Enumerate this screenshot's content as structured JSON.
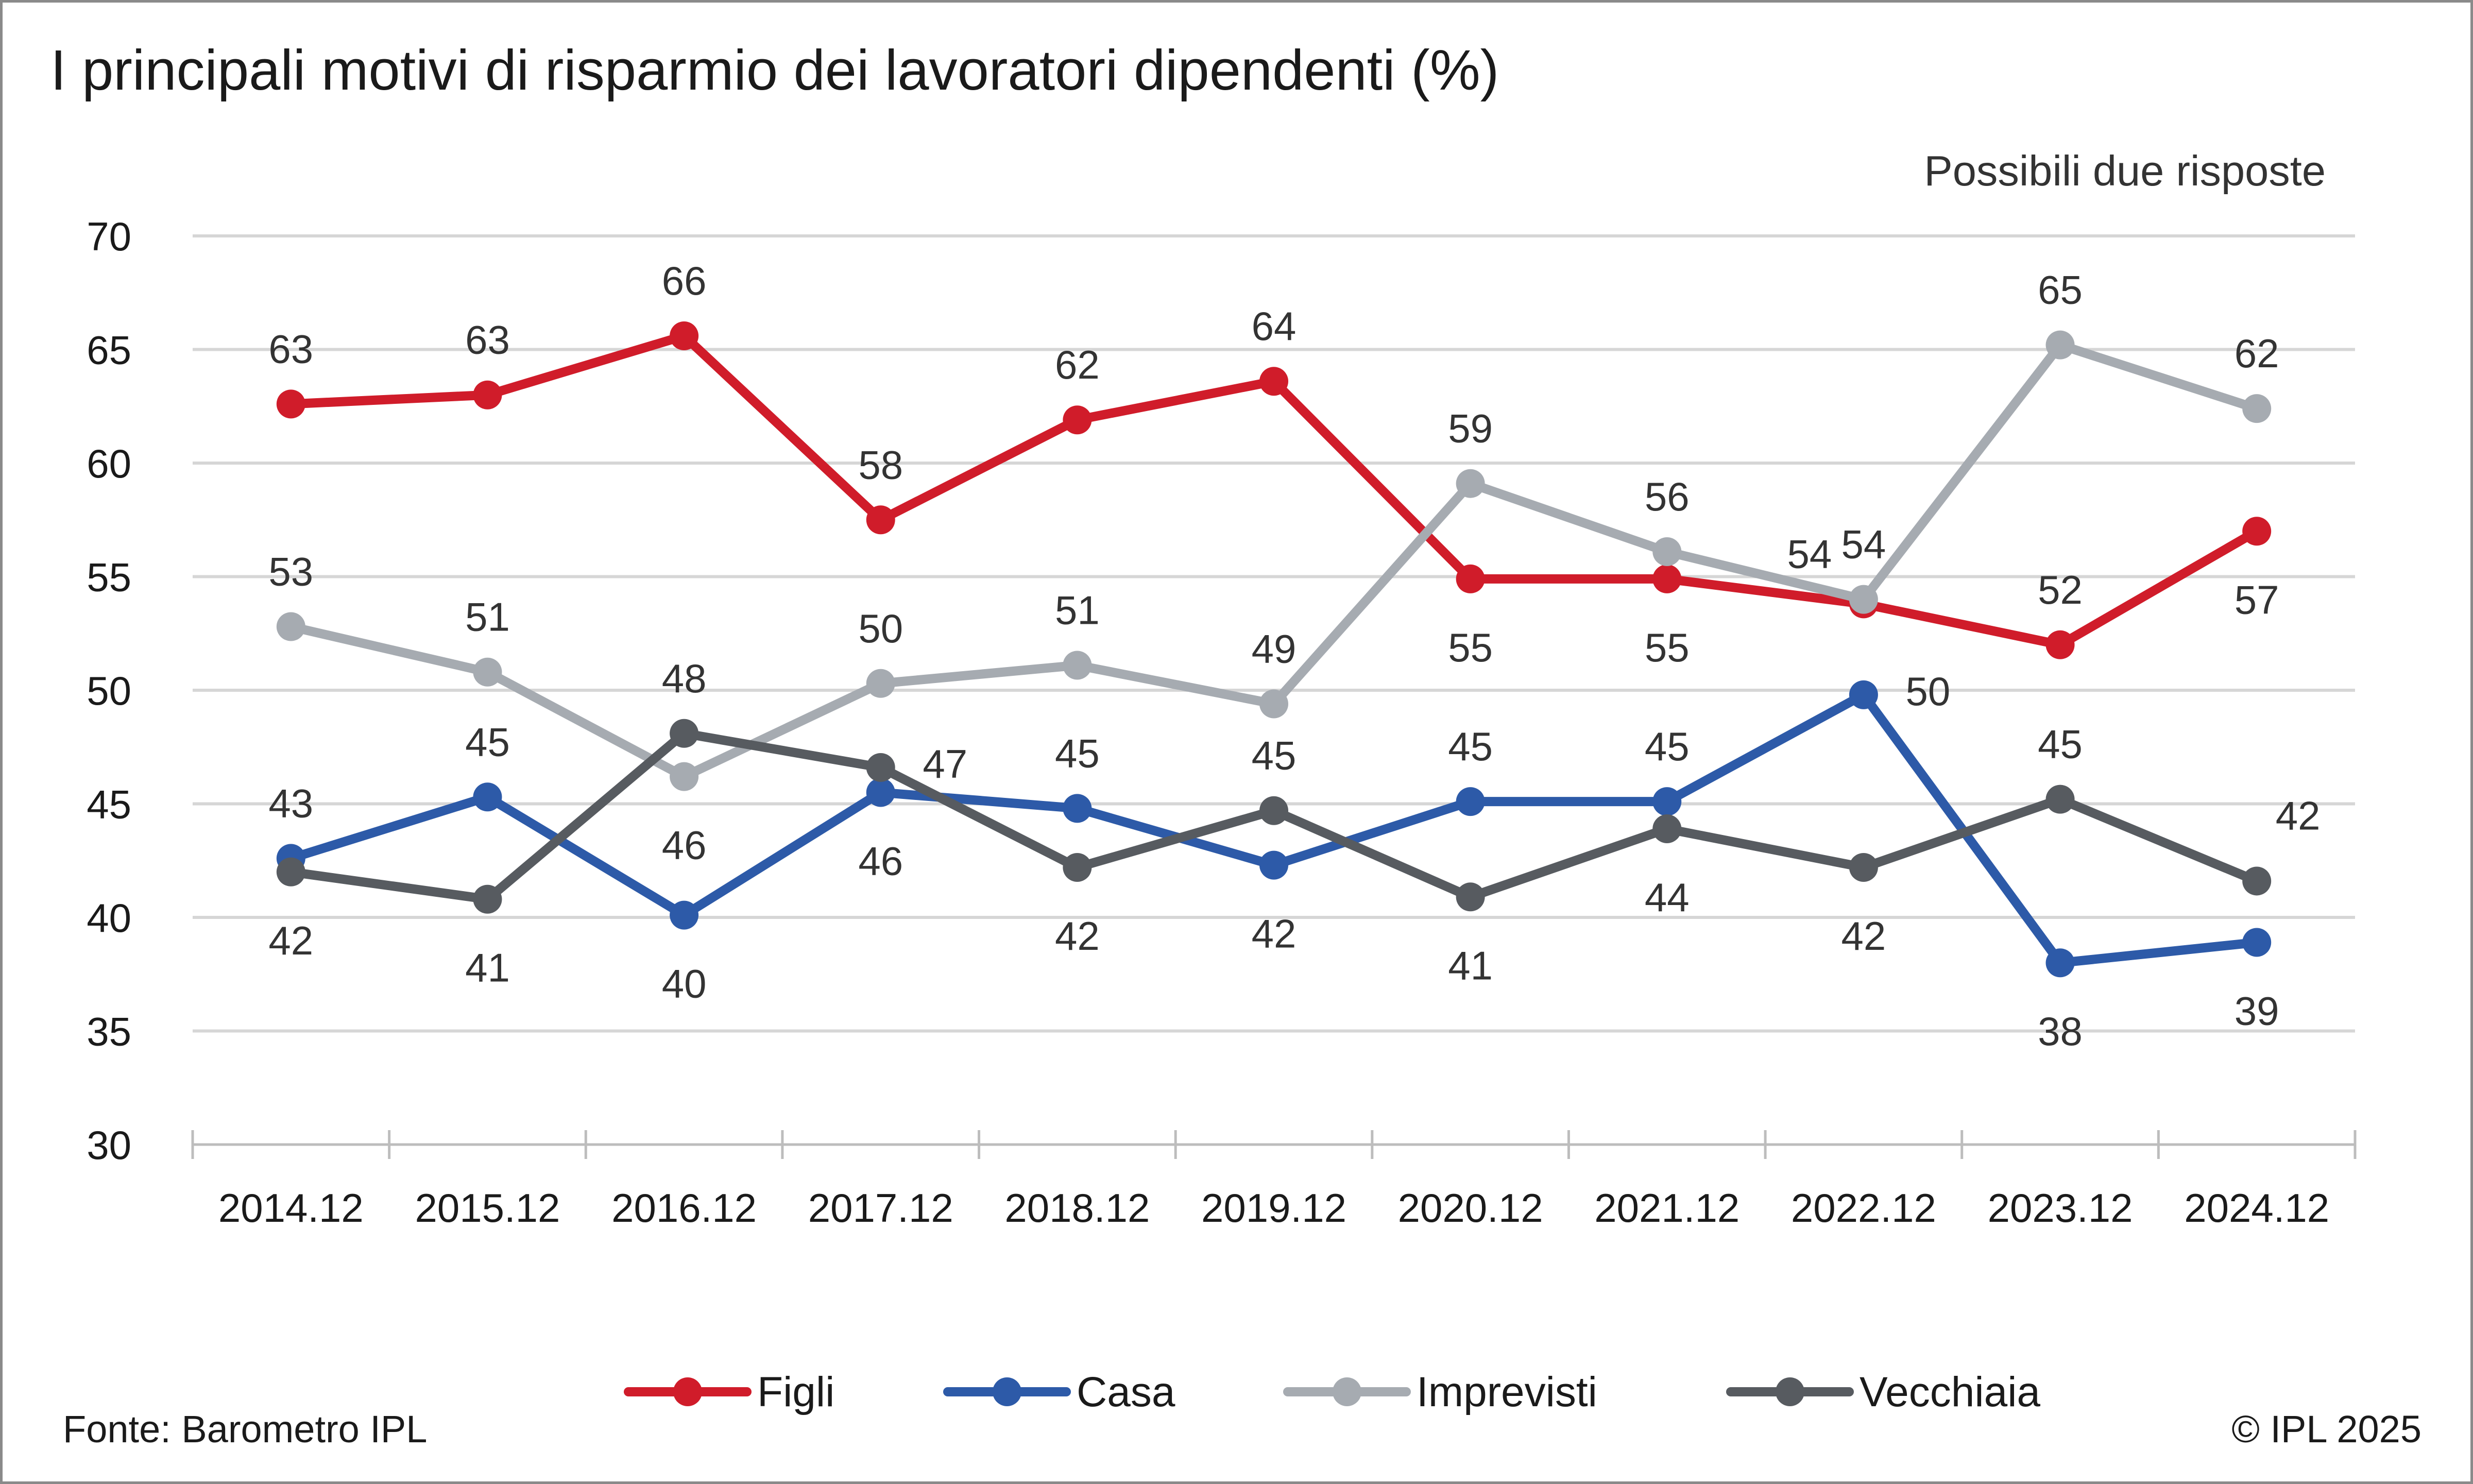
{
  "title": "I principali motivi di risparmio dei lavoratori dipendenti (%)",
  "note": "Possibili due risposte",
  "source": "Fonte: Barometro IPL",
  "copyright": "© IPL 2025",
  "chart_data": {
    "type": "line",
    "title": "I principali motivi di risparmio dei lavoratori dipendenti (%)",
    "xlabel": "",
    "ylabel": "",
    "ylim": [
      30,
      70
    ],
    "yticks": [
      30,
      35,
      40,
      45,
      50,
      55,
      60,
      65,
      70
    ],
    "grid": true,
    "legend": "bottom",
    "categories": [
      "2014.12",
      "2015.12",
      "2016.12",
      "2017.12",
      "2018.12",
      "2019.12",
      "2020.12",
      "2021.12",
      "2022.12",
      "2023.12",
      "2024.12"
    ],
    "series": [
      {
        "name": "Figli",
        "color": "#d01c2a",
        "values": [
          62.6,
          63.0,
          65.6,
          57.5,
          61.9,
          63.6,
          54.9,
          54.9,
          53.8,
          52.0,
          57.0
        ],
        "labels": [
          "63",
          "63",
          "66",
          "58",
          "62",
          "64",
          "55",
          "55",
          "54",
          "52",
          "57"
        ]
      },
      {
        "name": "Casa",
        "color": "#2d5aa8",
        "values": [
          42.6,
          45.3,
          40.1,
          45.5,
          44.8,
          42.3,
          45.1,
          45.1,
          49.8,
          38.0,
          38.9
        ],
        "labels": [
          "43",
          "45",
          "40",
          "46",
          "45",
          "42",
          "45",
          "45",
          "50",
          "38",
          "39"
        ]
      },
      {
        "name": "Imprevisti",
        "color": "#a6abb1",
        "values": [
          52.8,
          50.8,
          46.2,
          50.3,
          51.1,
          49.4,
          59.1,
          56.1,
          54.0,
          65.2,
          62.4
        ],
        "labels": [
          "53",
          "51",
          "46",
          "50",
          "51",
          "49",
          "59",
          "56",
          "54",
          "65",
          "62"
        ]
      },
      {
        "name": "Vecchiaia",
        "color": "#575b60",
        "values": [
          42.0,
          40.8,
          48.1,
          46.6,
          42.2,
          44.7,
          40.9,
          43.9,
          42.2,
          45.2,
          41.6
        ],
        "labels": [
          "42",
          "41",
          "48",
          "47",
          "42",
          "45",
          "41",
          "44",
          "42",
          "45",
          "42"
        ]
      }
    ]
  }
}
